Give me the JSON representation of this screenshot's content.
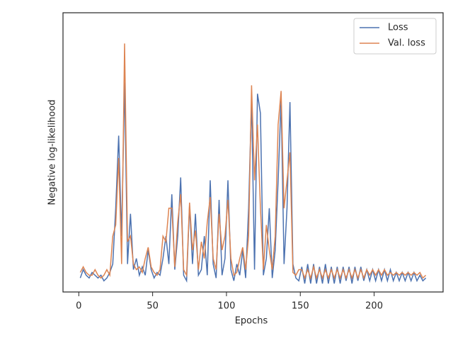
{
  "chart_data": {
    "type": "line",
    "xlabel": "Epochs",
    "ylabel": "Negative log-likelihood",
    "x": [
      1,
      3,
      5,
      7,
      9,
      11,
      13,
      15,
      17,
      19,
      21,
      23,
      25,
      27,
      29,
      31,
      33,
      35,
      37,
      39,
      41,
      43,
      45,
      47,
      49,
      51,
      53,
      55,
      57,
      59,
      61,
      63,
      65,
      67,
      69,
      71,
      73,
      75,
      77,
      79,
      81,
      83,
      85,
      87,
      89,
      91,
      93,
      95,
      97,
      99,
      101,
      103,
      105,
      107,
      109,
      111,
      113,
      115,
      117,
      119,
      121,
      123,
      125,
      127,
      129,
      131,
      133,
      135,
      137,
      139,
      141,
      143,
      145,
      147,
      149,
      151,
      153,
      155,
      157,
      159,
      161,
      163,
      165,
      167,
      169,
      171,
      173,
      175,
      177,
      179,
      181,
      183,
      185,
      187,
      189,
      191,
      193,
      195,
      197,
      199,
      201,
      203,
      205,
      207,
      209,
      211,
      213,
      215,
      217,
      219,
      221,
      223,
      225,
      227,
      229,
      231,
      233,
      235
    ],
    "series": [
      {
        "name": "Loss",
        "color": "#4c72b0",
        "values": [
          5,
          8,
          6,
          5,
          7,
          6,
          5,
          6,
          4,
          5,
          7,
          10,
          30,
          56,
          20,
          75,
          10,
          28,
          8,
          12,
          6,
          9,
          6,
          15,
          8,
          5,
          7,
          6,
          12,
          20,
          10,
          35,
          8,
          20,
          41,
          6,
          4,
          31,
          10,
          28,
          6,
          8,
          20,
          6,
          40,
          10,
          5,
          33,
          6,
          12,
          40,
          8,
          4,
          10,
          6,
          15,
          5,
          30,
          69,
          8,
          71,
          64,
          6,
          12,
          30,
          5,
          15,
          40,
          69,
          10,
          30,
          68,
          10,
          5,
          4,
          9,
          3,
          10,
          3,
          10,
          3,
          9,
          3,
          10,
          3,
          9,
          3,
          9,
          3,
          9,
          4,
          9,
          3,
          9,
          4,
          9,
          4,
          8,
          4,
          8,
          4,
          8,
          4,
          8,
          4,
          8,
          4,
          7,
          4,
          7,
          4,
          7,
          4,
          7,
          4,
          6,
          4,
          5
        ]
      },
      {
        "name": "Val. loss",
        "color": "#dd8452",
        "values": [
          7,
          9,
          7,
          6,
          6,
          8,
          6,
          5,
          6,
          8,
          6,
          20,
          24,
          48,
          10,
          89,
          18,
          20,
          10,
          8,
          9,
          7,
          12,
          16,
          9,
          7,
          6,
          8,
          20,
          18,
          30,
          30,
          9,
          25,
          35,
          8,
          6,
          32,
          15,
          22,
          8,
          18,
          12,
          25,
          34,
          12,
          8,
          28,
          15,
          20,
          33,
          12,
          6,
          7,
          12,
          16,
          8,
          20,
          74,
          40,
          60,
          30,
          8,
          24,
          15,
          8,
          20,
          60,
          72,
          30,
          40,
          50,
          7,
          6,
          8,
          8,
          5,
          8,
          5,
          9,
          5,
          8,
          5,
          8,
          5,
          8,
          5,
          8,
          5,
          8,
          5,
          8,
          5,
          8,
          5,
          8,
          5,
          8,
          6,
          8,
          6,
          8,
          6,
          8,
          6,
          7,
          6,
          7,
          6,
          7,
          6,
          7,
          6,
          7,
          6,
          7,
          5,
          6
        ]
      }
    ],
    "xlim": [
      -10.7,
      246.7
    ],
    "xticks": [
      0,
      50,
      100,
      150,
      200
    ],
    "ylim": [
      0,
      100
    ],
    "legend": "upper right"
  }
}
